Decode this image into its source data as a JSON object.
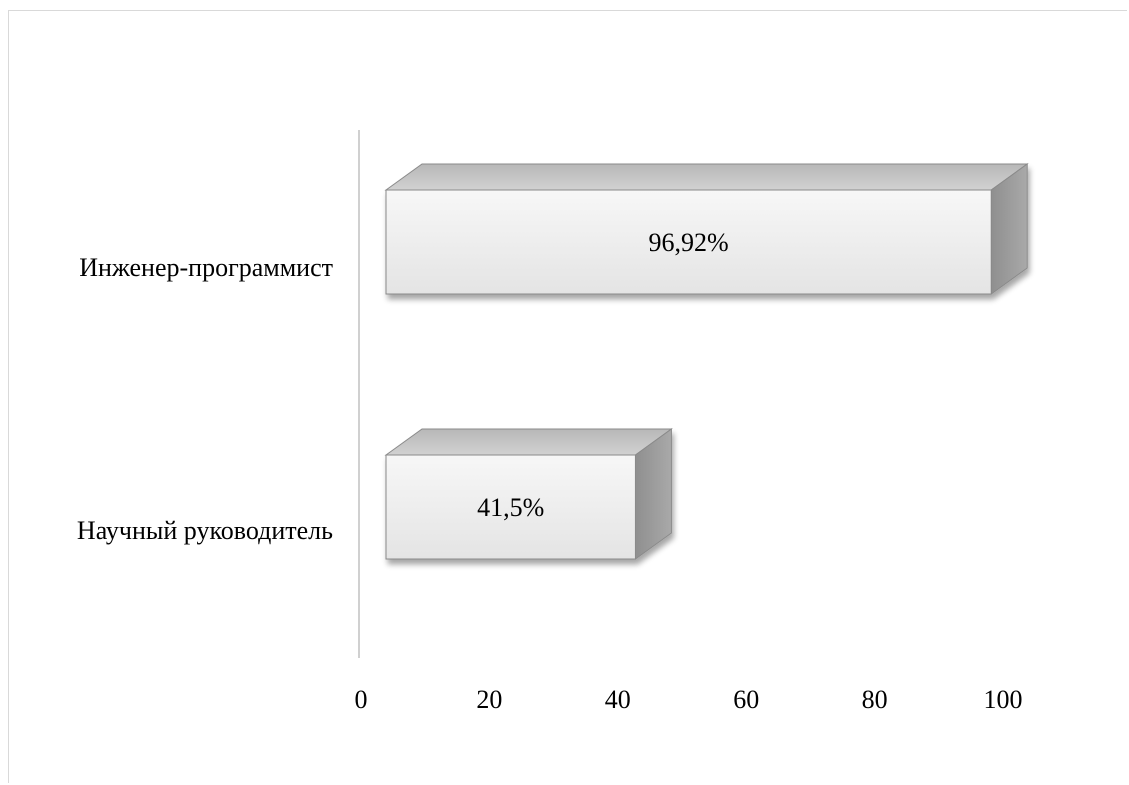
{
  "chart_data": {
    "type": "bar",
    "orientation": "horizontal",
    "style": "3d",
    "categories": [
      "Инженер-программист",
      "Научный руководитель"
    ],
    "values": [
      96.92,
      41.5
    ],
    "data_labels": [
      "96,92%",
      "41,5%"
    ],
    "xlim": [
      0,
      100
    ],
    "xticks": [
      "0",
      "20",
      "40",
      "60",
      "80",
      "100"
    ],
    "grid": false,
    "legend": "none",
    "colors": {
      "bar_face": "#ededed",
      "bar_top": "#c4c4c4",
      "bar_side": "#9a9a9a",
      "bar_outline": "#8a8a8a",
      "axis": "#d0d0d0"
    }
  }
}
